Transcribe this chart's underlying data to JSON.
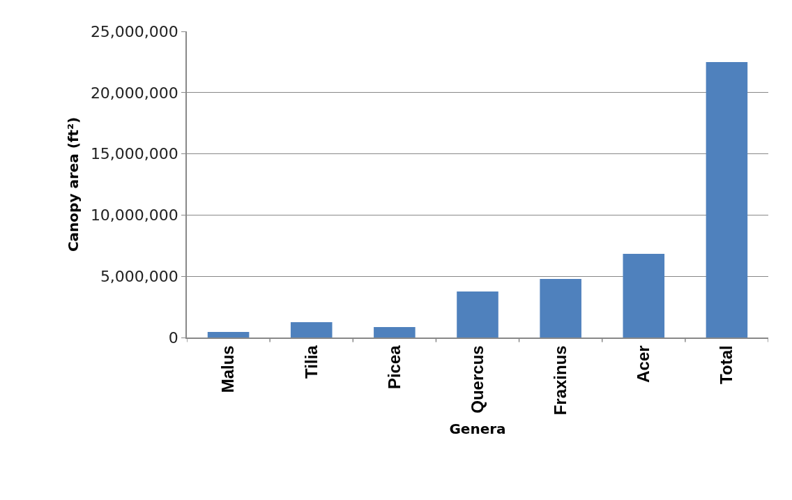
{
  "chart_data": {
    "type": "bar",
    "xlabel": "Genera",
    "ylabel": "Canopy area (ft²)",
    "categories": [
      "Malus",
      "Tilia",
      "Picea",
      "Quercus",
      "Fraxinus",
      "Acer",
      "Total"
    ],
    "values": [
      460000,
      1250000,
      850000,
      3760000,
      4780000,
      6830000,
      22500000
    ],
    "color": "#4f81bd",
    "ylim": [
      0,
      25000000
    ],
    "yticks": [
      {
        "value": 0,
        "label": "0"
      },
      {
        "value": 5000000,
        "label": "5,000,000"
      },
      {
        "value": 10000000,
        "label": "10,000,000"
      },
      {
        "value": 15000000,
        "label": "15,000,000"
      },
      {
        "value": 20000000,
        "label": "20,000,000"
      },
      {
        "value": 25000000,
        "label": "25,000,000"
      }
    ],
    "grid": "y"
  }
}
